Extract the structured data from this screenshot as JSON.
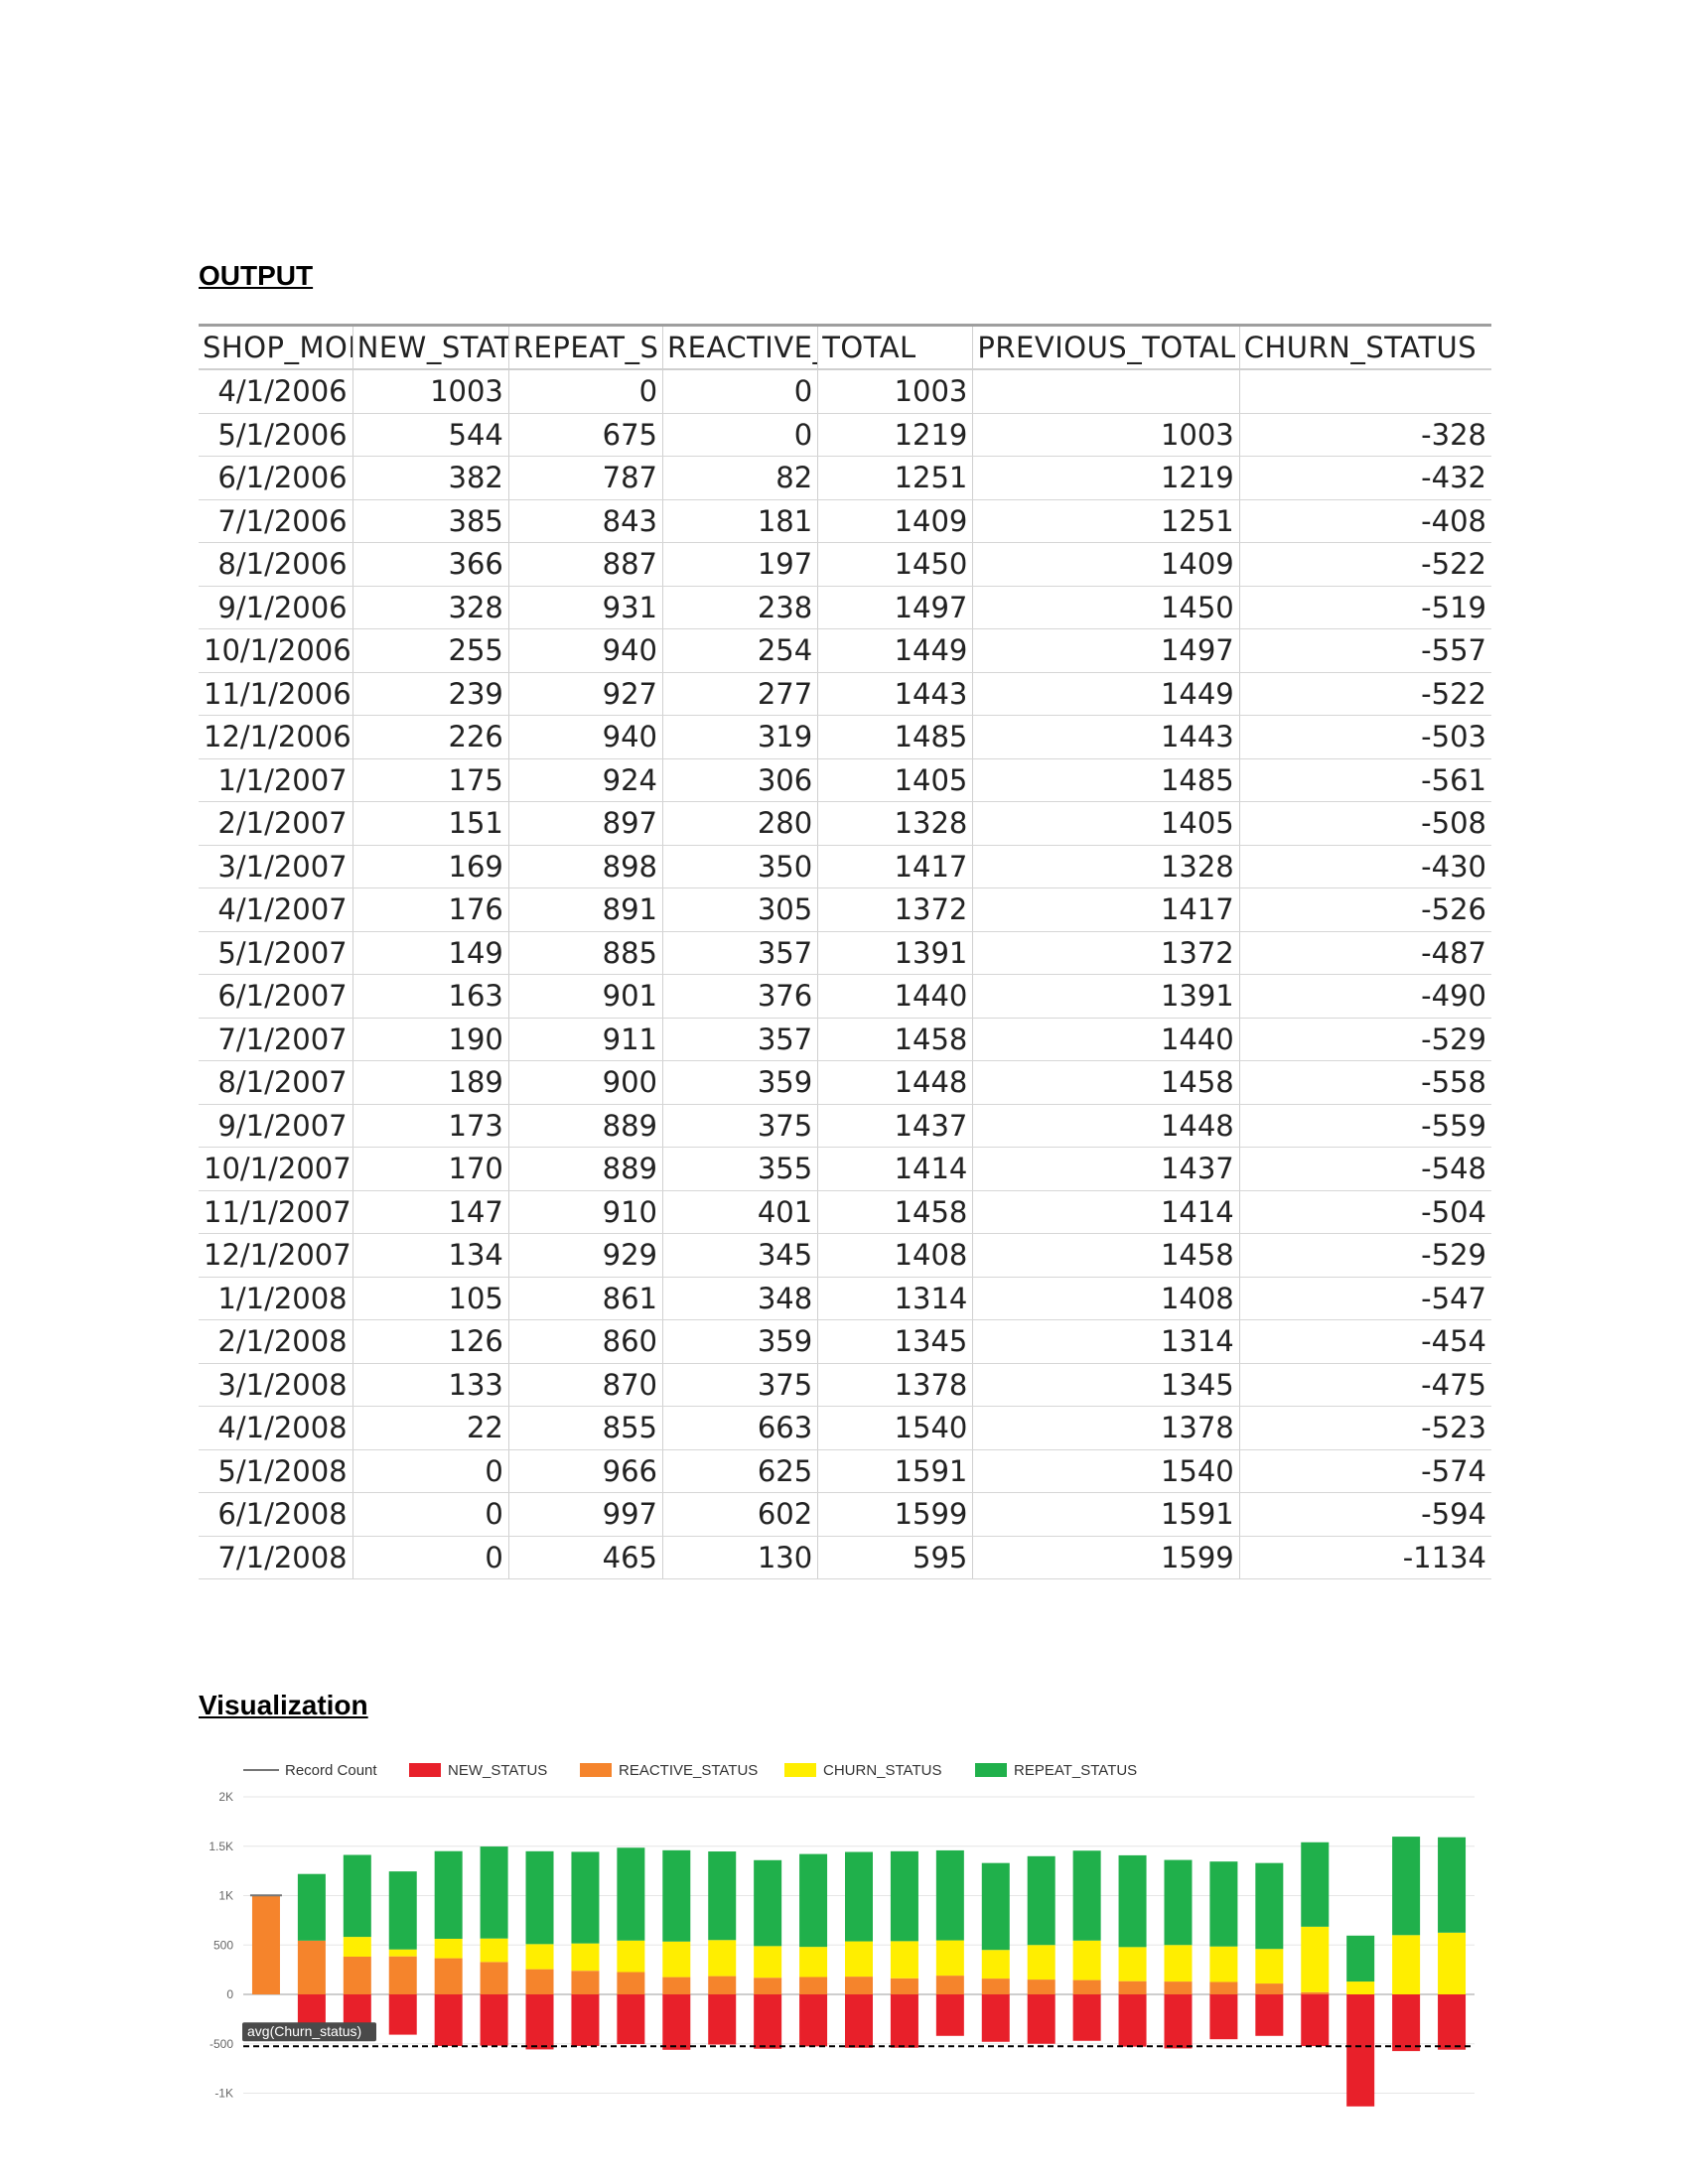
{
  "output_heading": "OUTPUT",
  "visualization_heading": "Visualization",
  "table": {
    "headers": [
      "SHOP_MONTH",
      "NEW_STAT",
      "REPEAT_S",
      "REACTIVE_",
      "TOTAL",
      "PREVIOUS_TOTAL",
      "CHURN_STATUS"
    ],
    "rows": [
      [
        "4/1/2006",
        "1003",
        "0",
        "0",
        "1003",
        "",
        ""
      ],
      [
        "5/1/2006",
        "544",
        "675",
        "0",
        "1219",
        "1003",
        "-328"
      ],
      [
        "6/1/2006",
        "382",
        "787",
        "82",
        "1251",
        "1219",
        "-432"
      ],
      [
        "7/1/2006",
        "385",
        "843",
        "181",
        "1409",
        "1251",
        "-408"
      ],
      [
        "8/1/2006",
        "366",
        "887",
        "197",
        "1450",
        "1409",
        "-522"
      ],
      [
        "9/1/2006",
        "328",
        "931",
        "238",
        "1497",
        "1450",
        "-519"
      ],
      [
        "10/1/2006",
        "255",
        "940",
        "254",
        "1449",
        "1497",
        "-557"
      ],
      [
        "11/1/2006",
        "239",
        "927",
        "277",
        "1443",
        "1449",
        "-522"
      ],
      [
        "12/1/2006",
        "226",
        "940",
        "319",
        "1485",
        "1443",
        "-503"
      ],
      [
        "1/1/2007",
        "175",
        "924",
        "306",
        "1405",
        "1485",
        "-561"
      ],
      [
        "2/1/2007",
        "151",
        "897",
        "280",
        "1328",
        "1405",
        "-508"
      ],
      [
        "3/1/2007",
        "169",
        "898",
        "350",
        "1417",
        "1328",
        "-430"
      ],
      [
        "4/1/2007",
        "176",
        "891",
        "305",
        "1372",
        "1417",
        "-526"
      ],
      [
        "5/1/2007",
        "149",
        "885",
        "357",
        "1391",
        "1372",
        "-487"
      ],
      [
        "6/1/2007",
        "163",
        "901",
        "376",
        "1440",
        "1391",
        "-490"
      ],
      [
        "7/1/2007",
        "190",
        "911",
        "357",
        "1458",
        "1440",
        "-529"
      ],
      [
        "8/1/2007",
        "189",
        "900",
        "359",
        "1448",
        "1458",
        "-558"
      ],
      [
        "9/1/2007",
        "173",
        "889",
        "375",
        "1437",
        "1448",
        "-559"
      ],
      [
        "10/1/2007",
        "170",
        "889",
        "355",
        "1414",
        "1437",
        "-548"
      ],
      [
        "11/1/2007",
        "147",
        "910",
        "401",
        "1458",
        "1414",
        "-504"
      ],
      [
        "12/1/2007",
        "134",
        "929",
        "345",
        "1408",
        "1458",
        "-529"
      ],
      [
        "1/1/2008",
        "105",
        "861",
        "348",
        "1314",
        "1408",
        "-547"
      ],
      [
        "2/1/2008",
        "126",
        "860",
        "359",
        "1345",
        "1314",
        "-454"
      ],
      [
        "3/1/2008",
        "133",
        "870",
        "375",
        "1378",
        "1345",
        "-475"
      ],
      [
        "4/1/2008",
        "22",
        "855",
        "663",
        "1540",
        "1378",
        "-523"
      ],
      [
        "5/1/2008",
        "0",
        "966",
        "625",
        "1591",
        "1540",
        "-574"
      ],
      [
        "6/1/2008",
        "0",
        "997",
        "602",
        "1599",
        "1591",
        "-594"
      ],
      [
        "7/1/2008",
        "0",
        "465",
        "130",
        "595",
        "1599",
        "-1134"
      ]
    ]
  },
  "chart_data": {
    "type": "bar",
    "stacked": true,
    "legend": [
      "Record Count",
      "NEW_STATUS",
      "REACTIVE_STATUS",
      "CHURN_STATUS",
      "REPEAT_STATUS"
    ],
    "legend_position": "top",
    "colors": {
      "record_count": "#757575",
      "NEW_STATUS": "#e8202a",
      "REACTIVE_STATUS": "#f5842c",
      "CHURN_STATUS": "#ffee00",
      "REPEAT_STATUS": "#20b04b",
      "avg_line": "#000000"
    },
    "y_ticks": [
      "2K",
      "1.5K",
      "1K",
      "500",
      "0",
      "-500",
      "-1K"
    ],
    "ylim": [
      -1250,
      2000
    ],
    "grid": true,
    "reference_line": {
      "label": "avg(Churn_status)",
      "value": -525
    },
    "bars": [
      {
        "positive": [
          {
            "s": "REACTIVE_STATUS",
            "v": 1003
          }
        ],
        "negative": [
          {
            "s": "REACTIVE_STATUS",
            "v": 0
          }
        ]
      },
      {
        "positive": [
          {
            "s": "REACTIVE_STATUS",
            "v": 544
          },
          {
            "s": "REPEAT_STATUS",
            "v": 675
          }
        ],
        "negative": [
          {
            "s": "NEW_STATUS",
            "v": 328
          }
        ]
      },
      {
        "positive": [
          {
            "s": "REACTIVE_STATUS",
            "v": 382
          },
          {
            "s": "CHURN_STATUS",
            "v": 200
          },
          {
            "s": "REPEAT_STATUS",
            "v": 830
          }
        ],
        "negative": [
          {
            "s": "NEW_STATUS",
            "v": 340
          }
        ]
      },
      {
        "positive": [
          {
            "s": "REACTIVE_STATUS",
            "v": 385
          },
          {
            "s": "CHURN_STATUS",
            "v": 70
          },
          {
            "s": "REPEAT_STATUS",
            "v": 790
          }
        ],
        "negative": [
          {
            "s": "NEW_STATUS",
            "v": 408
          }
        ]
      },
      {
        "positive": [
          {
            "s": "REACTIVE_STATUS",
            "v": 366
          },
          {
            "s": "CHURN_STATUS",
            "v": 197
          },
          {
            "s": "REPEAT_STATUS",
            "v": 887
          }
        ],
        "negative": [
          {
            "s": "NEW_STATUS",
            "v": 522
          }
        ]
      },
      {
        "positive": [
          {
            "s": "REACTIVE_STATUS",
            "v": 328
          },
          {
            "s": "CHURN_STATUS",
            "v": 238
          },
          {
            "s": "REPEAT_STATUS",
            "v": 931
          }
        ],
        "negative": [
          {
            "s": "NEW_STATUS",
            "v": 519
          }
        ]
      },
      {
        "positive": [
          {
            "s": "REACTIVE_STATUS",
            "v": 255
          },
          {
            "s": "CHURN_STATUS",
            "v": 254
          },
          {
            "s": "REPEAT_STATUS",
            "v": 940
          }
        ],
        "negative": [
          {
            "s": "NEW_STATUS",
            "v": 557
          }
        ]
      },
      {
        "positive": [
          {
            "s": "REACTIVE_STATUS",
            "v": 239
          },
          {
            "s": "CHURN_STATUS",
            "v": 277
          },
          {
            "s": "REPEAT_STATUS",
            "v": 927
          }
        ],
        "negative": [
          {
            "s": "NEW_STATUS",
            "v": 522
          }
        ]
      },
      {
        "positive": [
          {
            "s": "REACTIVE_STATUS",
            "v": 226
          },
          {
            "s": "CHURN_STATUS",
            "v": 319
          },
          {
            "s": "REPEAT_STATUS",
            "v": 940
          }
        ],
        "negative": [
          {
            "s": "NEW_STATUS",
            "v": 503
          }
        ]
      },
      {
        "positive": [
          {
            "s": "REACTIVE_STATUS",
            "v": 175
          },
          {
            "s": "CHURN_STATUS",
            "v": 360
          },
          {
            "s": "REPEAT_STATUS",
            "v": 924
          }
        ],
        "negative": [
          {
            "s": "NEW_STATUS",
            "v": 561
          }
        ]
      },
      {
        "positive": [
          {
            "s": "REACTIVE_STATUS",
            "v": 185
          },
          {
            "s": "CHURN_STATUS",
            "v": 365
          },
          {
            "s": "REPEAT_STATUS",
            "v": 897
          }
        ],
        "negative": [
          {
            "s": "NEW_STATUS",
            "v": 508
          }
        ]
      },
      {
        "positive": [
          {
            "s": "REACTIVE_STATUS",
            "v": 169
          },
          {
            "s": "CHURN_STATUS",
            "v": 320
          },
          {
            "s": "REPEAT_STATUS",
            "v": 870
          }
        ],
        "negative": [
          {
            "s": "NEW_STATUS",
            "v": 550
          }
        ]
      },
      {
        "positive": [
          {
            "s": "REACTIVE_STATUS",
            "v": 176
          },
          {
            "s": "CHURN_STATUS",
            "v": 305
          },
          {
            "s": "REPEAT_STATUS",
            "v": 940
          }
        ],
        "negative": [
          {
            "s": "NEW_STATUS",
            "v": 526
          }
        ]
      },
      {
        "positive": [
          {
            "s": "REACTIVE_STATUS",
            "v": 180
          },
          {
            "s": "CHURN_STATUS",
            "v": 357
          },
          {
            "s": "REPEAT_STATUS",
            "v": 905
          }
        ],
        "negative": [
          {
            "s": "NEW_STATUS",
            "v": 540
          }
        ]
      },
      {
        "positive": [
          {
            "s": "REACTIVE_STATUS",
            "v": 163
          },
          {
            "s": "CHURN_STATUS",
            "v": 376
          },
          {
            "s": "REPEAT_STATUS",
            "v": 910
          }
        ],
        "negative": [
          {
            "s": "NEW_STATUS",
            "v": 540
          }
        ]
      },
      {
        "positive": [
          {
            "s": "REACTIVE_STATUS",
            "v": 190
          },
          {
            "s": "CHURN_STATUS",
            "v": 357
          },
          {
            "s": "REPEAT_STATUS",
            "v": 911
          }
        ],
        "negative": [
          {
            "s": "NEW_STATUS",
            "v": 420
          }
        ]
      },
      {
        "positive": [
          {
            "s": "REACTIVE_STATUS",
            "v": 160
          },
          {
            "s": "CHURN_STATUS",
            "v": 290
          },
          {
            "s": "REPEAT_STATUS",
            "v": 880
          }
        ],
        "negative": [
          {
            "s": "NEW_STATUS",
            "v": 480
          }
        ]
      },
      {
        "positive": [
          {
            "s": "REACTIVE_STATUS",
            "v": 150
          },
          {
            "s": "CHURN_STATUS",
            "v": 350
          },
          {
            "s": "REPEAT_STATUS",
            "v": 899
          }
        ],
        "negative": [
          {
            "s": "NEW_STATUS",
            "v": 500
          }
        ]
      },
      {
        "positive": [
          {
            "s": "REACTIVE_STATUS",
            "v": 145
          },
          {
            "s": "CHURN_STATUS",
            "v": 400
          },
          {
            "s": "REPEAT_STATUS",
            "v": 910
          }
        ],
        "negative": [
          {
            "s": "NEW_STATUS",
            "v": 470
          }
        ]
      },
      {
        "positive": [
          {
            "s": "REACTIVE_STATUS",
            "v": 134
          },
          {
            "s": "CHURN_STATUS",
            "v": 345
          },
          {
            "s": "REPEAT_STATUS",
            "v": 929
          }
        ],
        "negative": [
          {
            "s": "NEW_STATUS",
            "v": 529
          }
        ]
      },
      {
        "positive": [
          {
            "s": "REACTIVE_STATUS",
            "v": 130
          },
          {
            "s": "CHURN_STATUS",
            "v": 370
          },
          {
            "s": "REPEAT_STATUS",
            "v": 861
          }
        ],
        "negative": [
          {
            "s": "NEW_STATUS",
            "v": 547
          }
        ]
      },
      {
        "positive": [
          {
            "s": "REACTIVE_STATUS",
            "v": 126
          },
          {
            "s": "CHURN_STATUS",
            "v": 359
          },
          {
            "s": "REPEAT_STATUS",
            "v": 860
          }
        ],
        "negative": [
          {
            "s": "NEW_STATUS",
            "v": 454
          }
        ]
      },
      {
        "positive": [
          {
            "s": "REACTIVE_STATUS",
            "v": 110
          },
          {
            "s": "CHURN_STATUS",
            "v": 350
          },
          {
            "s": "REPEAT_STATUS",
            "v": 870
          }
        ],
        "negative": [
          {
            "s": "NEW_STATUS",
            "v": 420
          }
        ]
      },
      {
        "positive": [
          {
            "s": "REACTIVE_STATUS",
            "v": 22
          },
          {
            "s": "CHURN_STATUS",
            "v": 663
          },
          {
            "s": "REPEAT_STATUS",
            "v": 855
          }
        ],
        "negative": [
          {
            "s": "NEW_STATUS",
            "v": 523
          }
        ]
      },
      {
        "positive": [
          {
            "s": "CHURN_STATUS",
            "v": 130
          },
          {
            "s": "REPEAT_STATUS",
            "v": 465
          }
        ],
        "negative": [
          {
            "s": "NEW_STATUS",
            "v": 1134
          }
        ]
      },
      {
        "positive": [
          {
            "s": "CHURN_STATUS",
            "v": 600
          },
          {
            "s": "REPEAT_STATUS",
            "v": 997
          }
        ],
        "negative": [
          {
            "s": "NEW_STATUS",
            "v": 574
          }
        ]
      },
      {
        "positive": [
          {
            "s": "CHURN_STATUS",
            "v": 625
          },
          {
            "s": "REPEAT_STATUS",
            "v": 966
          }
        ],
        "negative": [
          {
            "s": "NEW_STATUS",
            "v": 560
          }
        ]
      }
    ]
  }
}
